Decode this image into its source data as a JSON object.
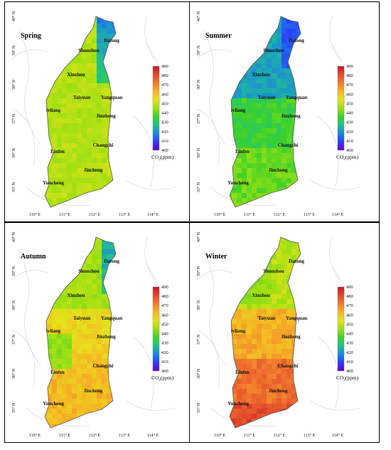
{
  "figure": {
    "panels": [
      {
        "id": "spring",
        "title": "Spring",
        "scheme": "spring"
      },
      {
        "id": "summer",
        "title": "Summer",
        "scheme": "summer"
      },
      {
        "id": "autumn",
        "title": "Autumn",
        "scheme": "autumn"
      },
      {
        "id": "winter",
        "title": "Winter",
        "scheme": "winter"
      }
    ],
    "cities": [
      "Datong",
      "Shuozhou",
      "Xinzhou",
      "Taiyuan",
      "Yangquan",
      "lvliang",
      "Jinzhong",
      "Changzhi",
      "Linfen",
      "Jincheng",
      "Yuncheng"
    ],
    "lat_ticks": [
      "40° N",
      "39° N",
      "38° N",
      "37° N",
      "36° N",
      "35° N"
    ],
    "lon_ticks": [
      "110° E",
      "111° E",
      "112° E",
      "113° E",
      "114° E"
    ],
    "colorbar": {
      "ticks": [
        "490",
        "480",
        "470",
        "460",
        "450",
        "440",
        "430",
        "420",
        "410",
        "400"
      ],
      "title": "CO",
      "title_sub": "2",
      "title_suffix": "(ppm)",
      "stops": [
        "#6a00cc",
        "#2a3dff",
        "#1b88e0",
        "#1fc38a",
        "#3bd12b",
        "#9ce012",
        "#e6e21a",
        "#f6b624",
        "#f07a2e",
        "#e34a2a",
        "#c9142a"
      ]
    }
  }
}
